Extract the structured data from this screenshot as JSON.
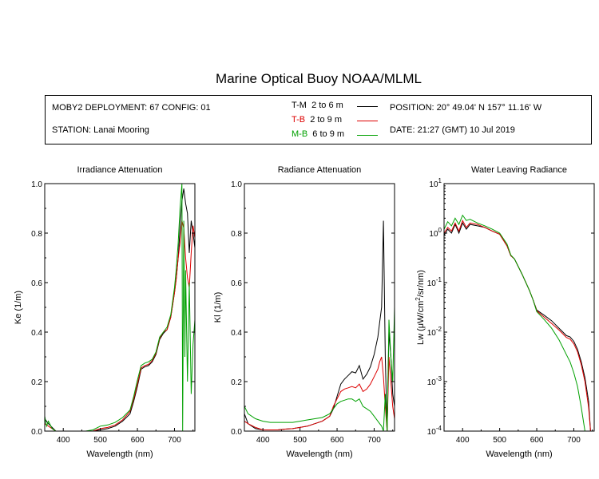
{
  "title": "Marine Optical Buoy NOAA/MLML",
  "info": {
    "deployment": "MOBY2 DEPLOYMENT: 67 CONFIG: 01",
    "station": "STATION: Lanai Mooring",
    "position": "POSITION: 20° 49.04' N   157° 11.16' W",
    "date": "DATE: 21:27 (GMT) 10 Jul 2019",
    "legend": [
      {
        "code": "T-M",
        "range": "2 to 6  m",
        "color": "#000000"
      },
      {
        "code": "T-B",
        "range": "2 to 9  m",
        "color": "#dd0000"
      },
      {
        "code": "M-B",
        "range": "6 to 9  m",
        "color": "#00a000"
      }
    ]
  },
  "chart_data": [
    {
      "type": "line",
      "title": "Irradiance Attenuation",
      "xlabel": "Wavelength (nm)",
      "ylabel": "Ke  (1/m)",
      "xlim": [
        350,
        755
      ],
      "ylim": [
        0,
        1.0
      ],
      "xticks": [
        400,
        500,
        600,
        700
      ],
      "yticks": [
        0.0,
        0.2,
        0.4,
        0.6,
        0.8,
        1.0
      ],
      "series": [
        {
          "code": "T-M",
          "color": "#000000",
          "x": [
            350,
            360,
            380,
            400,
            420,
            440,
            460,
            480,
            500,
            520,
            540,
            560,
            580,
            590,
            600,
            610,
            620,
            630,
            640,
            650,
            660,
            670,
            680,
            690,
            700,
            705,
            710,
            715,
            720,
            725,
            730,
            735,
            740,
            745,
            750,
            755
          ],
          "y": [
            0.05,
            0.03,
            0.0,
            0.0,
            0.0,
            0.0,
            0.0,
            0.0,
            0.005,
            0.01,
            0.02,
            0.04,
            0.07,
            0.12,
            0.18,
            0.25,
            0.26,
            0.265,
            0.28,
            0.31,
            0.37,
            0.395,
            0.41,
            0.46,
            0.56,
            0.62,
            0.7,
            0.82,
            0.93,
            0.98,
            0.92,
            0.88,
            0.72,
            0.85,
            0.8,
            0.74
          ]
        },
        {
          "code": "T-B",
          "color": "#dd0000",
          "x": [
            350,
            360,
            380,
            400,
            420,
            440,
            460,
            480,
            500,
            520,
            540,
            560,
            580,
            590,
            600,
            610,
            620,
            630,
            640,
            650,
            660,
            670,
            680,
            690,
            700,
            705,
            710,
            715,
            720,
            725,
            730,
            735,
            740,
            745,
            750,
            755
          ],
          "y": [
            0.03,
            0.02,
            0.0,
            0.0,
            0.0,
            0.0,
            0.0,
            0.0,
            0.01,
            0.015,
            0.025,
            0.045,
            0.08,
            0.13,
            0.19,
            0.255,
            0.265,
            0.27,
            0.285,
            0.315,
            0.375,
            0.4,
            0.41,
            0.46,
            0.56,
            0.62,
            0.7,
            0.76,
            0.85,
            0.82,
            0.7,
            0.62,
            0.58,
            0.72,
            0.83,
            0.78
          ]
        },
        {
          "code": "M-B",
          "color": "#00a000",
          "x": [
            350,
            355,
            360,
            370,
            380,
            390,
            400,
            420,
            440,
            460,
            480,
            500,
            520,
            540,
            560,
            580,
            590,
            600,
            610,
            620,
            630,
            640,
            650,
            660,
            670,
            680,
            690,
            700,
            705,
            710,
            715,
            720,
            722,
            725,
            728,
            730,
            735,
            740,
            745,
            750,
            755
          ],
          "y": [
            0.06,
            0.02,
            0.04,
            0.01,
            0.0,
            0.0,
            0.0,
            0.0,
            0.0,
            0.0,
            0.005,
            0.02,
            0.025,
            0.035,
            0.055,
            0.085,
            0.14,
            0.205,
            0.265,
            0.275,
            0.28,
            0.29,
            0.32,
            0.38,
            0.4,
            0.42,
            0.47,
            0.58,
            0.66,
            0.76,
            0.9,
            1.0,
            0.0,
            0.85,
            0.3,
            0.65,
            0.2,
            0.6,
            0.15,
            0.35,
            0.45
          ]
        }
      ]
    },
    {
      "type": "line",
      "title": "Radiance Attenuation",
      "xlabel": "Wavelength (nm)",
      "ylabel": "Kl  (1/m)",
      "xlim": [
        350,
        755
      ],
      "ylim": [
        0,
        1.0
      ],
      "xticks": [
        400,
        500,
        600,
        700
      ],
      "yticks": [
        0.0,
        0.2,
        0.4,
        0.6,
        0.8,
        1.0
      ],
      "series": [
        {
          "code": "T-M",
          "color": "#000000",
          "x": [
            350,
            360,
            380,
            400,
            420,
            440,
            460,
            480,
            500,
            520,
            540,
            560,
            580,
            590,
            600,
            610,
            620,
            630,
            640,
            650,
            660,
            670,
            680,
            690,
            700,
            710,
            715,
            720,
            725,
            730,
            735,
            740,
            745,
            750,
            755
          ],
          "y": [
            0.07,
            0.03,
            0.01,
            0.005,
            0.005,
            0.005,
            0.008,
            0.01,
            0.015,
            0.02,
            0.03,
            0.04,
            0.06,
            0.09,
            0.14,
            0.19,
            0.21,
            0.225,
            0.24,
            0.235,
            0.265,
            0.21,
            0.23,
            0.26,
            0.31,
            0.38,
            0.44,
            0.5,
            0.85,
            0.3,
            0.0,
            0.4,
            0.3,
            0.15,
            0.1
          ]
        },
        {
          "code": "T-B",
          "color": "#dd0000",
          "x": [
            350,
            360,
            380,
            400,
            420,
            440,
            460,
            480,
            500,
            520,
            540,
            560,
            580,
            590,
            600,
            610,
            620,
            630,
            640,
            650,
            660,
            670,
            680,
            690,
            700,
            710,
            715,
            720,
            725,
            730,
            735,
            740,
            745,
            750,
            755
          ],
          "y": [
            0.04,
            0.03,
            0.015,
            0.005,
            0.005,
            0.005,
            0.008,
            0.01,
            0.015,
            0.02,
            0.03,
            0.04,
            0.06,
            0.1,
            0.13,
            0.16,
            0.17,
            0.175,
            0.18,
            0.175,
            0.19,
            0.16,
            0.17,
            0.19,
            0.22,
            0.25,
            0.28,
            0.3,
            0.22,
            0.1,
            0.0,
            0.3,
            0.2,
            0.1,
            0.05
          ]
        },
        {
          "code": "M-B",
          "color": "#00a000",
          "x": [
            350,
            360,
            380,
            400,
            420,
            440,
            460,
            480,
            500,
            520,
            540,
            560,
            580,
            590,
            600,
            610,
            620,
            630,
            640,
            650,
            660,
            670,
            680,
            690,
            700,
            710,
            715,
            720,
            725,
            730,
            735,
            740,
            745,
            750,
            755
          ],
          "y": [
            0.1,
            0.07,
            0.05,
            0.04,
            0.035,
            0.035,
            0.035,
            0.035,
            0.04,
            0.045,
            0.05,
            0.055,
            0.07,
            0.09,
            0.11,
            0.12,
            0.125,
            0.13,
            0.13,
            0.12,
            0.13,
            0.1,
            0.09,
            0.08,
            0.06,
            0.04,
            0.03,
            0.02,
            0.0,
            0.15,
            0.0,
            0.45,
            0.3,
            0.2,
            0.5
          ]
        }
      ]
    },
    {
      "type": "line",
      "title": "Water Leaving Radiance",
      "xlabel": "Wavelength (nm)",
      "ylabel": "Lw  (μW/cm²/sr/nm)",
      "yscale": "log",
      "xlim": [
        350,
        755
      ],
      "ylim": [
        0.0001,
        10
      ],
      "xticks": [
        400,
        500,
        600,
        700
      ],
      "yticks": [
        0.0001,
        0.001,
        0.01,
        0.1,
        1,
        10
      ],
      "yticklabels": [
        [
          "10",
          "-4"
        ],
        [
          "10",
          "-3"
        ],
        [
          "10",
          "-2"
        ],
        [
          "10",
          "-1"
        ],
        [
          "10",
          "0"
        ],
        [
          "10",
          "1"
        ]
      ],
      "series": [
        {
          "code": "T-M",
          "color": "#000000",
          "x": [
            350,
            360,
            370,
            380,
            390,
            400,
            410,
            420,
            440,
            460,
            480,
            500,
            520,
            530,
            540,
            560,
            580,
            590,
            600,
            620,
            640,
            660,
            680,
            690,
            700,
            710,
            720,
            730,
            740,
            745
          ],
          "y": [
            0.9,
            1.2,
            1.0,
            1.5,
            1.0,
            1.6,
            1.2,
            1.5,
            1.4,
            1.3,
            1.1,
            0.95,
            0.55,
            0.35,
            0.3,
            0.15,
            0.07,
            0.045,
            0.028,
            0.022,
            0.017,
            0.012,
            0.0085,
            0.008,
            0.0065,
            0.0045,
            0.0025,
            0.0012,
            0.0004,
            0.0001
          ]
        },
        {
          "code": "T-B",
          "color": "#dd0000",
          "x": [
            350,
            360,
            370,
            380,
            390,
            400,
            410,
            420,
            440,
            460,
            480,
            500,
            520,
            530,
            540,
            560,
            580,
            590,
            600,
            620,
            640,
            660,
            680,
            690,
            700,
            710,
            720,
            730,
            740,
            745
          ],
          "y": [
            1.0,
            1.3,
            1.1,
            1.6,
            1.1,
            1.8,
            1.3,
            1.6,
            1.5,
            1.3,
            1.1,
            0.95,
            0.55,
            0.35,
            0.3,
            0.15,
            0.07,
            0.045,
            0.027,
            0.02,
            0.015,
            0.011,
            0.0078,
            0.0072,
            0.0058,
            0.004,
            0.0022,
            0.001,
            0.0003,
            0.0001
          ]
        },
        {
          "code": "M-B",
          "color": "#00a000",
          "x": [
            350,
            360,
            370,
            380,
            390,
            400,
            410,
            420,
            440,
            460,
            480,
            500,
            520,
            530,
            540,
            560,
            580,
            590,
            600,
            620,
            640,
            660,
            680,
            690,
            700,
            710,
            720,
            730
          ],
          "y": [
            1.2,
            1.7,
            1.4,
            2.0,
            1.5,
            2.3,
            1.8,
            1.9,
            1.6,
            1.4,
            1.2,
            1.0,
            0.6,
            0.36,
            0.3,
            0.15,
            0.07,
            0.045,
            0.026,
            0.018,
            0.012,
            0.007,
            0.0035,
            0.0025,
            0.0015,
            0.0008,
            0.0003,
            0.0001
          ]
        }
      ]
    }
  ]
}
